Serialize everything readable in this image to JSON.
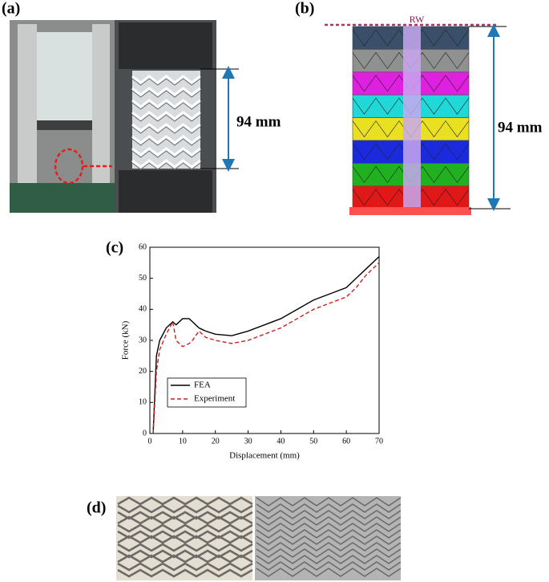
{
  "panels": {
    "a": {
      "label": "(a)",
      "dimension": "94 mm"
    },
    "b": {
      "label": "(b)",
      "wall": "RW",
      "dimension": "94 mm"
    },
    "c": {
      "label": "(c)"
    },
    "d": {
      "label": "(d)"
    }
  },
  "chart_data": {
    "type": "line",
    "xlabel": "Displacement (mm)",
    "ylabel": "Force (kN)",
    "x": [
      1,
      2,
      3,
      5,
      7,
      8,
      10,
      12,
      13,
      15,
      17,
      20,
      25,
      30,
      35,
      40,
      45,
      50,
      55,
      60,
      63,
      66,
      70
    ],
    "series": [
      {
        "name": "FEA",
        "color": "#000000",
        "line_style": "solid",
        "values": [
          0,
          25,
          30,
          34,
          36,
          35,
          37,
          37,
          36,
          34,
          33,
          32,
          31.5,
          33,
          35,
          37,
          40,
          43,
          45,
          47,
          50,
          53,
          57
        ]
      },
      {
        "name": "Experiment",
        "color": "#cc1f1f",
        "line_style": "dashed",
        "values": [
          0,
          20,
          27,
          32,
          36,
          30,
          28,
          29,
          30,
          33,
          31,
          30,
          29,
          30,
          32,
          34,
          37,
          40,
          42,
          44,
          47,
          51,
          55
        ]
      }
    ],
    "xlim": [
      0,
      70
    ],
    "ylim": [
      0,
      60
    ],
    "xticks": [
      0,
      10,
      20,
      30,
      40,
      50,
      60,
      70
    ],
    "yticks": [
      0,
      10,
      20,
      30,
      40,
      50,
      60
    ],
    "legend": "lower left"
  }
}
